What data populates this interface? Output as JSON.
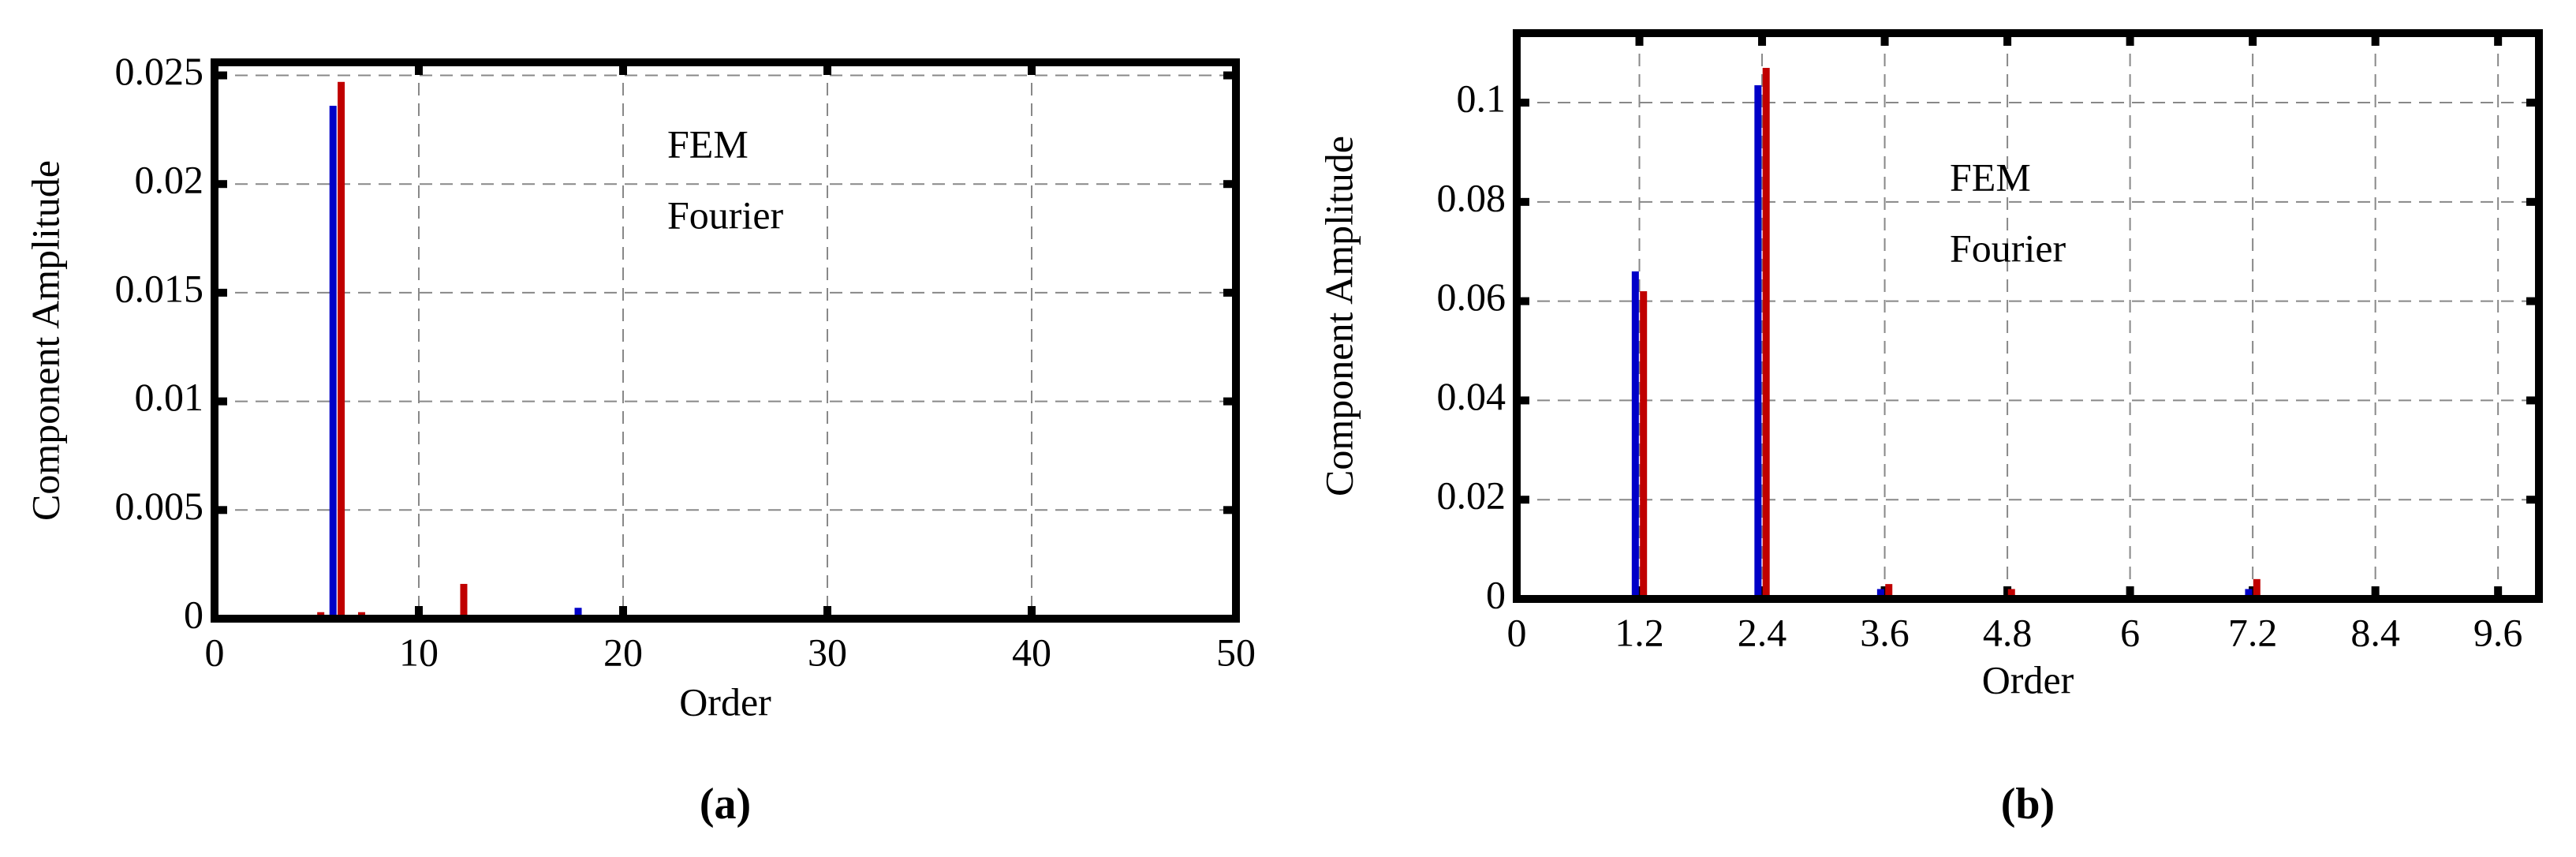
{
  "chart_data": [
    {
      "type": "bar",
      "caption": "(a)",
      "xlabel": "Order",
      "ylabel": "Component Amplitude",
      "xlim": [
        0,
        50
      ],
      "xticks": [
        0,
        10,
        20,
        30,
        40,
        50
      ],
      "ylim": [
        0,
        0.0256
      ],
      "yticks": [
        0,
        0.005,
        0.01,
        0.015,
        0.02,
        0.025
      ],
      "grid": true,
      "series": [
        {
          "name": "FEM",
          "color": "#c00000",
          "x": [
            5.2,
            6.2,
            7.2,
            12.2
          ],
          "values": [
            0.0003,
            0.0247,
            0.0003,
            0.0016
          ]
        },
        {
          "name": "Fourier",
          "color": "#0000c8",
          "x": [
            5.8,
            17.8
          ],
          "values": [
            0.0236,
            0.0005
          ]
        }
      ]
    },
    {
      "type": "bar",
      "caption": "(b)",
      "xlabel": "Order",
      "ylabel": "Component Amplitude",
      "xlim": [
        0,
        10
      ],
      "xticks": [
        0,
        1.2,
        2.4,
        3.6,
        4.8,
        6,
        7.2,
        8.4,
        9.6
      ],
      "ylim": [
        0,
        0.114
      ],
      "yticks": [
        0,
        0.02,
        0.04,
        0.06,
        0.08,
        0.1
      ],
      "grid": true,
      "series": [
        {
          "name": "FEM",
          "color": "#c00000",
          "x": [
            1.24,
            2.44,
            3.64,
            4.84,
            7.24
          ],
          "values": [
            0.062,
            0.107,
            0.003,
            0.002,
            0.004
          ]
        },
        {
          "name": "Fourier",
          "color": "#0000c8",
          "x": [
            1.16,
            2.36,
            3.56,
            7.16
          ],
          "values": [
            0.066,
            0.1035,
            0.002,
            0.002
          ]
        }
      ]
    }
  ]
}
